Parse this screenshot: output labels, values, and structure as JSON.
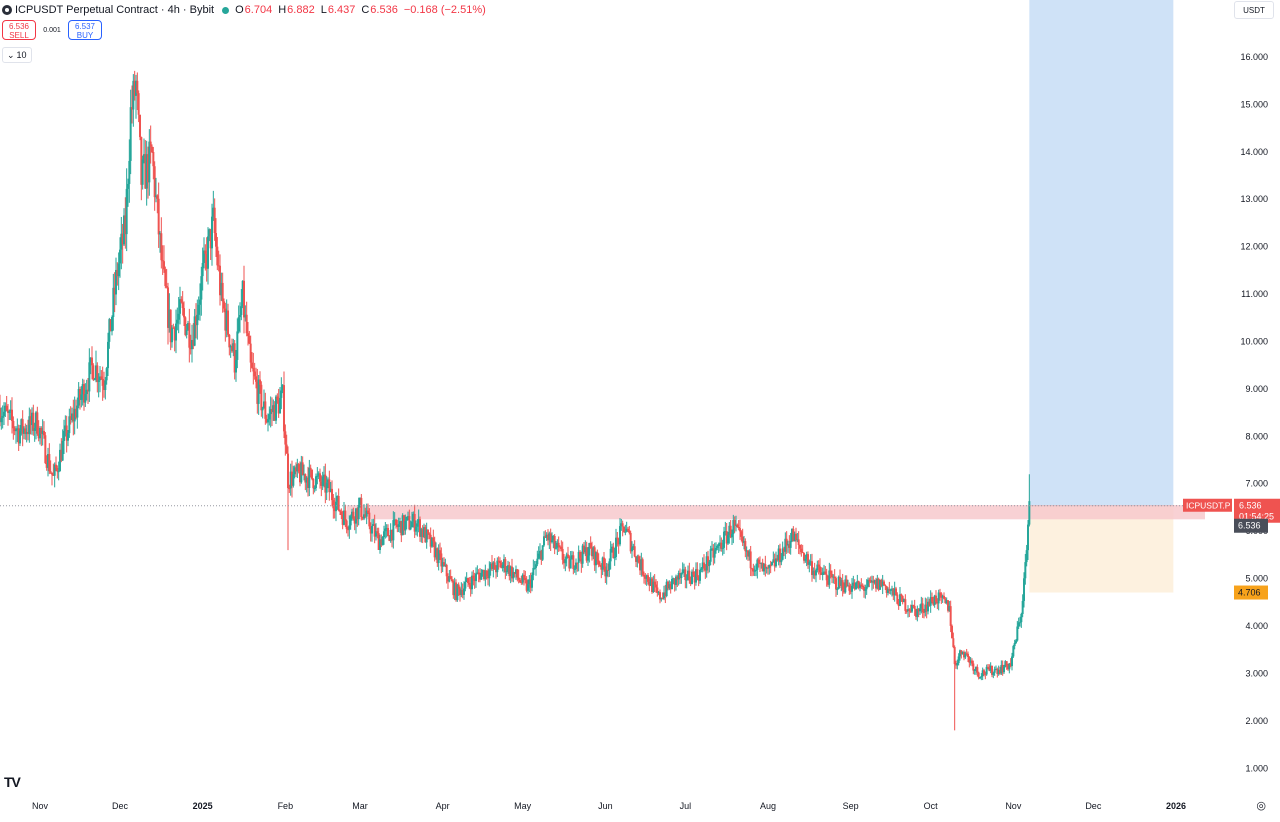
{
  "header": {
    "title": "ICPUSDT Perpetual Contract · 4h · Bybit",
    "o_label": "O",
    "o_value": "6.704",
    "h_label": "H",
    "h_value": "6.882",
    "l_label": "L",
    "l_value": "6.437",
    "c_label": "C",
    "c_value": "6.536",
    "change": "−0.168 (−2.51%)"
  },
  "trade": {
    "sell_price": "6.536",
    "sell_label": "SELL",
    "spread": "0.001",
    "buy_price": "6.537",
    "buy_label": "BUY"
  },
  "volume_toggle": {
    "chevron": "⌄",
    "value": "10"
  },
  "currency": "USDT",
  "tv_logo": "TV",
  "settings_icon": "◎",
  "colors": {
    "up": "#26a69a",
    "down": "#ef5350",
    "zone": "#f7c9cd",
    "target": "#cfe2f7",
    "stop": "#fdf1df",
    "last_price": "#ef5350"
  },
  "chart_data": {
    "type": "candlestick",
    "title": "",
    "xlabel": "",
    "ylabel": "",
    "ylim": [
      0.5,
      17.2
    ],
    "y_ticks": [
      "1.000",
      "2.000",
      "3.000",
      "4.000",
      "5.000",
      "6.000",
      "7.000",
      "8.000",
      "9.000",
      "10.000",
      "11.000",
      "12.000",
      "13.000",
      "14.000",
      "15.000",
      "16.000"
    ],
    "x_ticks": [
      "Nov",
      "Dec",
      "2025",
      "Feb",
      "Mar",
      "Apr",
      "May",
      "Jun",
      "Jul",
      "Aug",
      "Sep",
      "Oct",
      "Nov",
      "Dec",
      "2026"
    ],
    "price_path": [
      [
        "2024-10-17",
        8.6
      ],
      [
        "2024-10-24",
        8.1
      ],
      [
        "2024-10-31",
        8.3
      ],
      [
        "2024-11-06",
        7.1
      ],
      [
        "2024-11-10",
        7.9
      ],
      [
        "2024-11-16",
        8.8
      ],
      [
        "2024-11-21",
        9.5
      ],
      [
        "2024-11-25",
        9.2
      ],
      [
        "2024-11-30",
        11.5
      ],
      [
        "2024-12-03",
        12.4
      ],
      [
        "2024-12-05",
        14.8
      ],
      [
        "2024-12-07",
        15.4
      ],
      [
        "2024-12-09",
        13.4
      ],
      [
        "2024-12-13",
        13.9
      ],
      [
        "2024-12-17",
        11.4
      ],
      [
        "2024-12-20",
        10.2
      ],
      [
        "2024-12-24",
        10.6
      ],
      [
        "2024-12-28",
        10.1
      ],
      [
        "2025-01-01",
        11.4
      ],
      [
        "2025-01-05",
        12.5
      ],
      [
        "2025-01-08",
        10.9
      ],
      [
        "2025-01-13",
        9.6
      ],
      [
        "2025-01-16",
        10.9
      ],
      [
        "2025-01-19",
        9.4
      ],
      [
        "2025-01-25",
        8.4
      ],
      [
        "2025-01-31",
        8.8
      ],
      [
        "2025-02-02",
        7.1
      ],
      [
        "2025-02-07",
        7.2
      ],
      [
        "2025-02-12",
        7.1
      ],
      [
        "2025-02-17",
        6.9
      ],
      [
        "2025-02-24",
        6.2
      ],
      [
        "2025-03-01",
        6.5
      ],
      [
        "2025-03-08",
        5.8
      ],
      [
        "2025-03-15",
        6.1
      ],
      [
        "2025-03-22",
        6.2
      ],
      [
        "2025-03-29",
        5.6
      ],
      [
        "2025-04-06",
        4.7
      ],
      [
        "2025-04-15",
        5.1
      ],
      [
        "2025-04-24",
        5.3
      ],
      [
        "2025-05-03",
        4.8
      ],
      [
        "2025-05-10",
        5.9
      ],
      [
        "2025-05-18",
        5.3
      ],
      [
        "2025-05-26",
        5.6
      ],
      [
        "2025-06-01",
        5.2
      ],
      [
        "2025-06-08",
        6.1
      ],
      [
        "2025-06-14",
        5.3
      ],
      [
        "2025-06-21",
        4.6
      ],
      [
        "2025-06-28",
        5.0
      ],
      [
        "2025-07-06",
        5.1
      ],
      [
        "2025-07-14",
        5.7
      ],
      [
        "2025-07-19",
        6.1
      ],
      [
        "2025-07-25",
        5.4
      ],
      [
        "2025-08-01",
        5.1
      ],
      [
        "2025-08-10",
        5.9
      ],
      [
        "2025-08-18",
        5.2
      ],
      [
        "2025-08-27",
        4.9
      ],
      [
        "2025-09-05",
        4.8
      ],
      [
        "2025-09-13",
        4.9
      ],
      [
        "2025-09-20",
        4.5
      ],
      [
        "2025-09-26",
        4.3
      ],
      [
        "2025-10-03",
        4.6
      ],
      [
        "2025-10-08",
        4.4
      ],
      [
        "2025-10-10",
        3.2
      ],
      [
        "2025-10-13",
        3.5
      ],
      [
        "2025-10-19",
        3.0
      ],
      [
        "2025-10-27",
        3.1
      ],
      [
        "2025-10-31",
        3.2
      ],
      [
        "2025-11-04",
        4.3
      ],
      [
        "2025-11-06",
        5.6
      ],
      [
        "2025-11-07",
        6.54
      ]
    ],
    "extremes": [
      {
        "date": "2024-12-07",
        "high": 15.5
      },
      {
        "date": "2025-02-02",
        "low": 5.6
      },
      {
        "date": "2025-10-10",
        "low": 1.8
      },
      {
        "date": "2025-11-07",
        "high": 7.2
      }
    ],
    "resistance_zone": {
      "low": 6.25,
      "high": 6.55,
      "start": "2025-02-24"
    },
    "position": {
      "entry": 6.536,
      "target": 17.2,
      "stop": 4.706,
      "start": "2025-11-07",
      "end": "2025-12-31"
    },
    "last_price": {
      "symbol": "ICPUSDT.P",
      "value": "6.536",
      "countdown": "01:54:25"
    },
    "entry_tag": "6.536",
    "stop_tag": "4.706"
  }
}
